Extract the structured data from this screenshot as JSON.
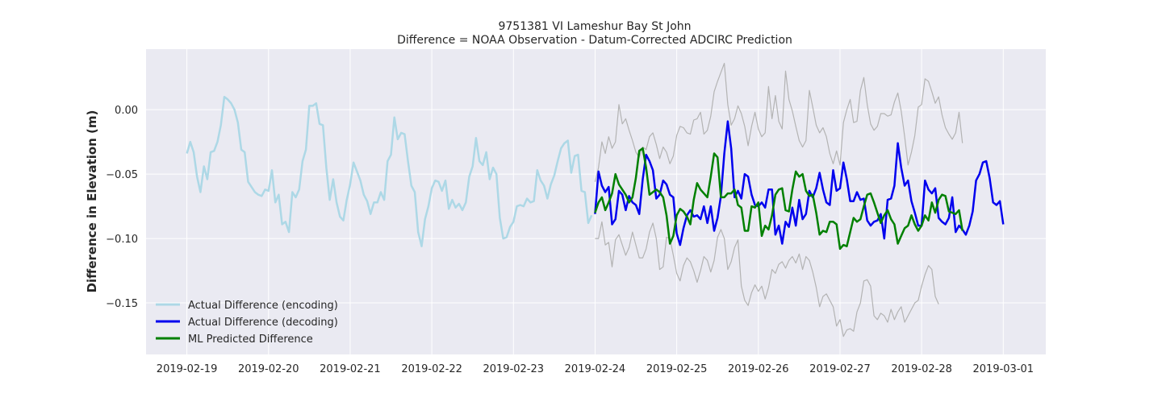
{
  "chart_data": {
    "type": "line",
    "title": "9751381 VI Lameshur Bay St John",
    "subtitle": "Difference = NOAA Observation - Datum-Corrected ADCIRC Prediction",
    "xlabel": "",
    "ylabel": "Difference in Elevation (m)",
    "x_ticks": [
      "2019-02-19",
      "2019-02-20",
      "2019-02-21",
      "2019-02-22",
      "2019-02-23",
      "2019-02-24",
      "2019-02-25",
      "2019-02-26",
      "2019-02-27",
      "2019-02-28",
      "2019-03-01"
    ],
    "y_ticks": [
      0.0,
      -0.05,
      -0.1,
      -0.15
    ],
    "y_tick_labels": [
      "0.00",
      "−0.05",
      "−0.10",
      "−0.15"
    ],
    "ylim": [
      -0.19,
      0.047
    ],
    "xlim": [
      "2019-02-18T12:00",
      "2019-03-01T12:30"
    ],
    "grid": true,
    "legend_position": "bottom-left",
    "colors": {
      "encoding": "#add8e6",
      "decoding": "#0000ee",
      "predicted": "#008000",
      "bounds": "#b3b3b3",
      "plot_bg": "#eaeaf2",
      "grid": "#ffffff"
    },
    "series": [
      {
        "name": "Actual Difference (encoding)",
        "key": "encoding",
        "x_start": "2019-02-19T00:00",
        "step_hours": 1,
        "values": [
          -0.034,
          -0.025,
          -0.033,
          -0.052,
          -0.064,
          -0.044,
          -0.054,
          -0.033,
          -0.032,
          -0.025,
          -0.012,
          0.01,
          0.008,
          0.005,
          0.0,
          -0.01,
          -0.031,
          -0.033,
          -0.056,
          -0.06,
          -0.064,
          -0.066,
          -0.067,
          -0.062,
          -0.063,
          -0.047,
          -0.072,
          -0.066,
          -0.089,
          -0.087,
          -0.095,
          -0.064,
          -0.068,
          -0.062,
          -0.04,
          -0.031,
          0.003,
          0.003,
          0.005,
          -0.011,
          -0.012,
          -0.045,
          -0.07,
          -0.054,
          -0.072,
          -0.083,
          -0.086,
          -0.07,
          -0.058,
          -0.041,
          -0.048,
          -0.055,
          -0.066,
          -0.071,
          -0.081,
          -0.072,
          -0.072,
          -0.064,
          -0.07,
          -0.04,
          -0.035,
          -0.006,
          -0.023,
          -0.018,
          -0.019,
          -0.04,
          -0.059,
          -0.064,
          -0.095,
          -0.106,
          -0.085,
          -0.075,
          -0.061,
          -0.055,
          -0.056,
          -0.063,
          -0.055,
          -0.077,
          -0.07,
          -0.076,
          -0.073,
          -0.078,
          -0.072,
          -0.052,
          -0.044,
          -0.022,
          -0.04,
          -0.043,
          -0.033,
          -0.054,
          -0.045,
          -0.05,
          -0.084,
          -0.1,
          -0.099,
          -0.091,
          -0.087,
          -0.075,
          -0.074,
          -0.075,
          -0.069,
          -0.072,
          -0.071,
          -0.047,
          -0.055,
          -0.059,
          -0.069,
          -0.058,
          -0.051,
          -0.04,
          -0.03,
          -0.026,
          -0.024,
          -0.049,
          -0.036,
          -0.035,
          -0.063,
          -0.064,
          -0.088,
          -0.082
        ]
      },
      {
        "name": "Actual Difference (decoding)",
        "key": "decoding",
        "x_start": "2019-02-24T00:00",
        "step_hours": 1,
        "values": [
          -0.081,
          -0.048,
          -0.059,
          -0.064,
          -0.06,
          -0.089,
          -0.085,
          -0.063,
          -0.066,
          -0.078,
          -0.067,
          -0.072,
          -0.074,
          -0.081,
          -0.054,
          -0.035,
          -0.04,
          -0.047,
          -0.069,
          -0.066,
          -0.055,
          -0.058,
          -0.066,
          -0.068,
          -0.096,
          -0.105,
          -0.092,
          -0.082,
          -0.078,
          -0.083,
          -0.082,
          -0.085,
          -0.075,
          -0.088,
          -0.075,
          -0.094,
          -0.084,
          -0.067,
          -0.034,
          -0.009,
          -0.03,
          -0.068,
          -0.063,
          -0.069,
          -0.05,
          -0.052,
          -0.066,
          -0.074,
          -0.075,
          -0.072,
          -0.076,
          -0.062,
          -0.062,
          -0.097,
          -0.09,
          -0.104,
          -0.087,
          -0.091,
          -0.076,
          -0.09,
          -0.07,
          -0.085,
          -0.081,
          -0.063,
          -0.068,
          -0.061,
          -0.049,
          -0.062,
          -0.072,
          -0.074,
          -0.047,
          -0.063,
          -0.061,
          -0.041,
          -0.054,
          -0.071,
          -0.071,
          -0.064,
          -0.07,
          -0.069,
          -0.086,
          -0.09,
          -0.087,
          -0.086,
          -0.081,
          -0.1,
          -0.07,
          -0.069,
          -0.059,
          -0.026,
          -0.045,
          -0.059,
          -0.055,
          -0.071,
          -0.08,
          -0.09,
          -0.09,
          -0.055,
          -0.062,
          -0.065,
          -0.061,
          -0.084,
          -0.087,
          -0.089,
          -0.084,
          -0.068,
          -0.095,
          -0.09,
          -0.093,
          -0.097,
          -0.09,
          -0.079,
          -0.055,
          -0.05,
          -0.041,
          -0.04,
          -0.053,
          -0.072,
          -0.074,
          -0.071,
          -0.089
        ]
      },
      {
        "name": "ML Predicted Difference",
        "key": "predicted",
        "x_start": "2019-02-24T00:00",
        "step_hours": 1,
        "values": [
          -0.08,
          -0.072,
          -0.068,
          -0.078,
          -0.072,
          -0.065,
          -0.05,
          -0.058,
          -0.062,
          -0.066,
          -0.072,
          -0.068,
          -0.053,
          -0.032,
          -0.03,
          -0.045,
          -0.066,
          -0.064,
          -0.062,
          -0.064,
          -0.068,
          -0.082,
          -0.104,
          -0.098,
          -0.082,
          -0.077,
          -0.079,
          -0.083,
          -0.089,
          -0.07,
          -0.057,
          -0.062,
          -0.065,
          -0.068,
          -0.052,
          -0.034,
          -0.037,
          -0.068,
          -0.068,
          -0.065,
          -0.065,
          -0.062,
          -0.074,
          -0.076,
          -0.094,
          -0.094,
          -0.075,
          -0.076,
          -0.072,
          -0.098,
          -0.09,
          -0.093,
          -0.082,
          -0.066,
          -0.062,
          -0.061,
          -0.078,
          -0.079,
          -0.062,
          -0.048,
          -0.052,
          -0.05,
          -0.063,
          -0.067,
          -0.066,
          -0.08,
          -0.097,
          -0.094,
          -0.095,
          -0.087,
          -0.087,
          -0.089,
          -0.108,
          -0.105,
          -0.106,
          -0.095,
          -0.084,
          -0.087,
          -0.085,
          -0.075,
          -0.066,
          -0.065,
          -0.072,
          -0.08,
          -0.088,
          -0.082,
          -0.078,
          -0.085,
          -0.089,
          -0.104,
          -0.098,
          -0.092,
          -0.09,
          -0.082,
          -0.089,
          -0.094,
          -0.09,
          -0.082,
          -0.086,
          -0.072,
          -0.08,
          -0.07,
          -0.066,
          -0.067,
          -0.079,
          -0.08,
          -0.081,
          -0.078,
          -0.094
        ]
      },
      {
        "name": "",
        "key": "bounds",
        "x_start": "2019-02-24T00:00",
        "step_hours": 1,
        "values": [
          -0.056,
          -0.045,
          -0.025,
          -0.034,
          -0.021,
          -0.03,
          -0.025,
          0.004,
          -0.011,
          -0.007,
          -0.016,
          -0.024,
          -0.033,
          -0.037,
          -0.029,
          -0.031,
          -0.021,
          -0.018,
          -0.027,
          -0.038,
          -0.029,
          -0.033,
          -0.042,
          -0.036,
          -0.02,
          -0.013,
          -0.014,
          -0.018,
          -0.019,
          -0.008,
          -0.007,
          -0.002,
          -0.019,
          -0.016,
          -0.005,
          0.014,
          0.022,
          0.029,
          0.036,
          0.004,
          -0.012,
          -0.007,
          0.003,
          -0.003,
          -0.013,
          -0.028,
          -0.013,
          -0.002,
          -0.015,
          -0.021,
          -0.018,
          0.018,
          -0.007,
          0.011,
          -0.009,
          -0.015,
          0.03,
          0.008,
          -0.001,
          -0.013,
          -0.024,
          -0.029,
          -0.024,
          0.015,
          0.002,
          -0.012,
          -0.018,
          -0.014,
          -0.021,
          -0.034,
          -0.042,
          -0.032,
          -0.043,
          -0.01,
          0.0,
          0.008,
          -0.01,
          -0.009,
          0.015,
          0.025,
          0.004,
          -0.011,
          -0.016,
          -0.013,
          -0.003,
          -0.003,
          -0.005,
          -0.004,
          0.006,
          0.013,
          -0.001,
          -0.021,
          -0.043,
          -0.033,
          -0.02,
          0.002,
          0.004,
          0.024,
          0.022,
          0.014,
          0.005,
          0.01,
          -0.004,
          -0.014,
          -0.019,
          -0.023,
          -0.018,
          -0.002,
          -0.026
        ]
      },
      {
        "name": "",
        "key": "bounds",
        "x_start": "2019-02-24T00:00",
        "step_hours": 1,
        "values": [
          -0.1,
          -0.1,
          -0.087,
          -0.105,
          -0.103,
          -0.122,
          -0.101,
          -0.097,
          -0.105,
          -0.113,
          -0.107,
          -0.095,
          -0.105,
          -0.115,
          -0.115,
          -0.108,
          -0.095,
          -0.088,
          -0.1,
          -0.124,
          -0.122,
          -0.099,
          -0.1,
          -0.113,
          -0.127,
          -0.133,
          -0.121,
          -0.115,
          -0.118,
          -0.125,
          -0.134,
          -0.125,
          -0.114,
          -0.117,
          -0.126,
          -0.117,
          -0.099,
          -0.093,
          -0.1,
          -0.124,
          -0.118,
          -0.107,
          -0.101,
          -0.137,
          -0.148,
          -0.152,
          -0.142,
          -0.136,
          -0.141,
          -0.137,
          -0.147,
          -0.138,
          -0.124,
          -0.127,
          -0.12,
          -0.118,
          -0.123,
          -0.117,
          -0.114,
          -0.119,
          -0.112,
          -0.124,
          -0.114,
          -0.117,
          -0.126,
          -0.138,
          -0.153,
          -0.145,
          -0.143,
          -0.148,
          -0.153,
          -0.168,
          -0.163,
          -0.176,
          -0.171,
          -0.17,
          -0.172,
          -0.157,
          -0.15,
          -0.133,
          -0.132,
          -0.137,
          -0.16,
          -0.163,
          -0.158,
          -0.16,
          -0.165,
          -0.155,
          -0.163,
          -0.157,
          -0.153,
          -0.165,
          -0.16,
          -0.155,
          -0.15,
          -0.148,
          -0.137,
          -0.128,
          -0.121,
          -0.124,
          -0.145,
          -0.151
        ]
      }
    ]
  }
}
